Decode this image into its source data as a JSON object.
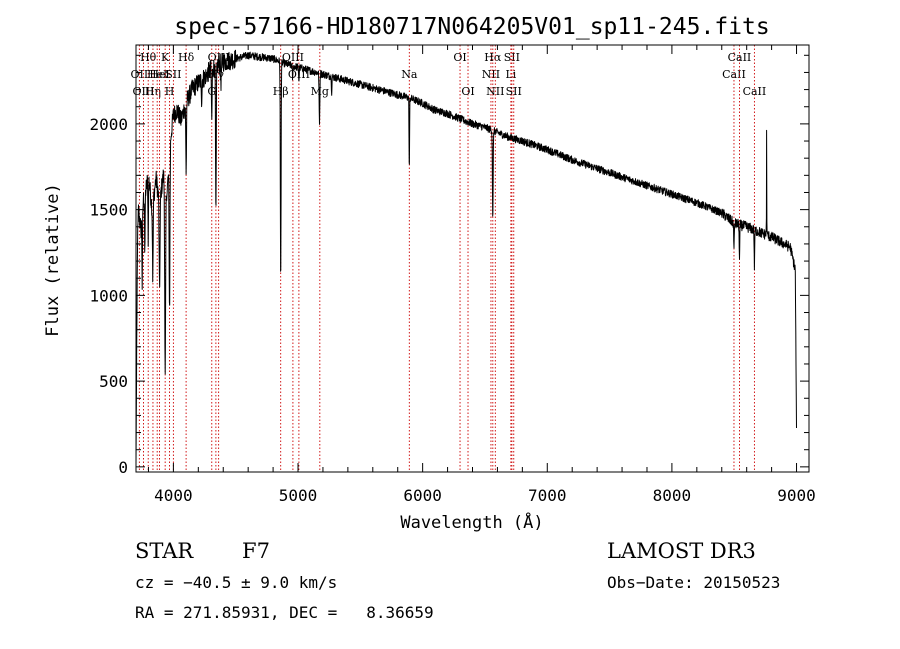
{
  "chart_data": {
    "type": "line",
    "title": "spec-57166-HD180717N064205V01_sp11-245.fits",
    "xlabel": "Wavelength (Å)",
    "ylabel": "Flux (relative)",
    "xlim": [
      3700,
      9100
    ],
    "ylim": [
      -30,
      2460
    ],
    "xticks": [
      4000,
      5000,
      6000,
      7000,
      8000,
      9000
    ],
    "xtick_labels": [
      "4000",
      "5000",
      "6000",
      "7000",
      "8000",
      "9000"
    ],
    "yticks": [
      0,
      500,
      1000,
      1500,
      2000
    ],
    "ytick_labels": [
      "0",
      "500",
      "1000",
      "1500",
      "2000"
    ],
    "series": [
      {
        "name": "flux",
        "color": "#000000",
        "continuum": {
          "x": [
            3700,
            3705,
            3712,
            3720,
            3740,
            3760,
            3780,
            3800,
            3830,
            3860,
            3890,
            3920,
            3950,
            3975,
            4000,
            4030,
            4060,
            4100,
            4150,
            4200,
            4250,
            4300,
            4400,
            4500,
            4600,
            4700,
            4800,
            4900,
            5000,
            5100,
            5200,
            5300,
            5400,
            5500,
            5600,
            5700,
            5800,
            5900,
            6000,
            6100,
            6200,
            6300,
            6400,
            6500,
            6600,
            6700,
            6800,
            7000,
            7200,
            7400,
            7600,
            7800,
            8000,
            8200,
            8400,
            8500,
            8600,
            8700,
            8800,
            8900,
            8950,
            8990,
            9000
          ],
          "y": [
            0,
            550,
            1300,
            1500,
            1380,
            1560,
            1620,
            1700,
            1500,
            1680,
            1550,
            1700,
            1600,
            1900,
            2050,
            2080,
            2020,
            2120,
            2200,
            2240,
            2270,
            2320,
            2360,
            2380,
            2400,
            2390,
            2380,
            2350,
            2330,
            2310,
            2290,
            2270,
            2250,
            2230,
            2210,
            2190,
            2170,
            2150,
            2120,
            2080,
            2060,
            2030,
            2000,
            1980,
            1950,
            1920,
            1900,
            1850,
            1790,
            1740,
            1690,
            1640,
            1590,
            1540,
            1480,
            1420,
            1400,
            1370,
            1340,
            1300,
            1280,
            1150,
            200
          ]
        },
        "absorption": [
          {
            "x": 3750,
            "depth": 420,
            "width": 3
          },
          {
            "x": 3771,
            "depth": 380,
            "width": 3
          },
          {
            "x": 3798,
            "depth": 360,
            "width": 3
          },
          {
            "x": 3835,
            "depth": 440,
            "width": 4
          },
          {
            "x": 3889,
            "depth": 520,
            "width": 5
          },
          {
            "x": 3934,
            "depth": 1150,
            "width": 5
          },
          {
            "x": 3969,
            "depth": 900,
            "width": 5
          },
          {
            "x": 4102,
            "depth": 400,
            "width": 4
          },
          {
            "x": 4227,
            "depth": 120,
            "width": 3
          },
          {
            "x": 4308,
            "depth": 300,
            "width": 4
          },
          {
            "x": 4341,
            "depth": 900,
            "width": 4
          },
          {
            "x": 4383,
            "depth": 120,
            "width": 3
          },
          {
            "x": 4861,
            "depth": 1300,
            "width": 4
          },
          {
            "x": 4957,
            "depth": 80,
            "width": 3
          },
          {
            "x": 5007,
            "depth": 80,
            "width": 3
          },
          {
            "x": 5172,
            "depth": 300,
            "width": 4
          },
          {
            "x": 5270,
            "depth": 90,
            "width": 3
          },
          {
            "x": 5893,
            "depth": 430,
            "width": 3
          },
          {
            "x": 6563,
            "depth": 520,
            "width": 4
          },
          {
            "x": 8498,
            "depth": 170,
            "width": 3
          },
          {
            "x": 8542,
            "depth": 220,
            "width": 3
          },
          {
            "x": 8662,
            "depth": 220,
            "width": 3
          }
        ],
        "emission": [
          {
            "x": 8760,
            "height": 600,
            "width": 1.5
          }
        ],
        "noise": 22
      }
    ],
    "line_markers": [
      {
        "x": 3727,
        "label": "OII",
        "row": 2
      },
      {
        "x": 3760,
        "label": "OIII",
        "row": 3
      },
      {
        "x": 3798,
        "label": "Hθ",
        "row": 1
      },
      {
        "x": 3836,
        "label": "Hη",
        "row": 3
      },
      {
        "x": 3870,
        "label": "HeI",
        "row": 2
      },
      {
        "x": 3889,
        "label": "HeI",
        "row": 2
      },
      {
        "x": 3934,
        "label": "K",
        "row": 1
      },
      {
        "x": 3969,
        "label": "H",
        "row": 3
      },
      {
        "x": 4000,
        "label": "SII",
        "row": 2
      },
      {
        "x": 4102,
        "label": "Hδ",
        "row": 1
      },
      {
        "x": 4308,
        "label": "G",
        "row": 3
      },
      {
        "x": 4341,
        "label": "Hγ",
        "row": 2
      },
      {
        "x": 4363,
        "label": "OIII",
        "row": 1
      },
      {
        "x": 4861,
        "label": "Hβ",
        "row": 3
      },
      {
        "x": 4959,
        "label": "OIII",
        "row": 1
      },
      {
        "x": 5007,
        "label": "OIII",
        "row": 2
      },
      {
        "x": 5175,
        "label": "Mg",
        "row": 3
      },
      {
        "x": 5893,
        "label": "Na",
        "row": 2
      },
      {
        "x": 6300,
        "label": "OI",
        "row": 1
      },
      {
        "x": 6364,
        "label": "OI",
        "row": 3
      },
      {
        "x": 6548,
        "label": "NII",
        "row": 2
      },
      {
        "x": 6563,
        "label": "Hα",
        "row": 1
      },
      {
        "x": 6583,
        "label": "NII",
        "row": 3
      },
      {
        "x": 6708,
        "label": "Li",
        "row": 2
      },
      {
        "x": 6716,
        "label": "SII",
        "row": 1
      },
      {
        "x": 6731,
        "label": "SII",
        "row": 3
      },
      {
        "x": 8498,
        "label": "CaII",
        "row": 2
      },
      {
        "x": 8542,
        "label": "CaII",
        "row": 1
      },
      {
        "x": 8662,
        "label": "CaII",
        "row": 3
      }
    ],
    "marker_color": "#cc0000"
  },
  "info": {
    "object_class": "STAR",
    "subclass": "F7",
    "survey": "LAMOST DR3",
    "cz": "cz = −40.5 ± 9.0 km/s",
    "obs_date": "Obs−Date: 20150523",
    "coords": "RA = 271.85931, DEC =   8.36659"
  }
}
